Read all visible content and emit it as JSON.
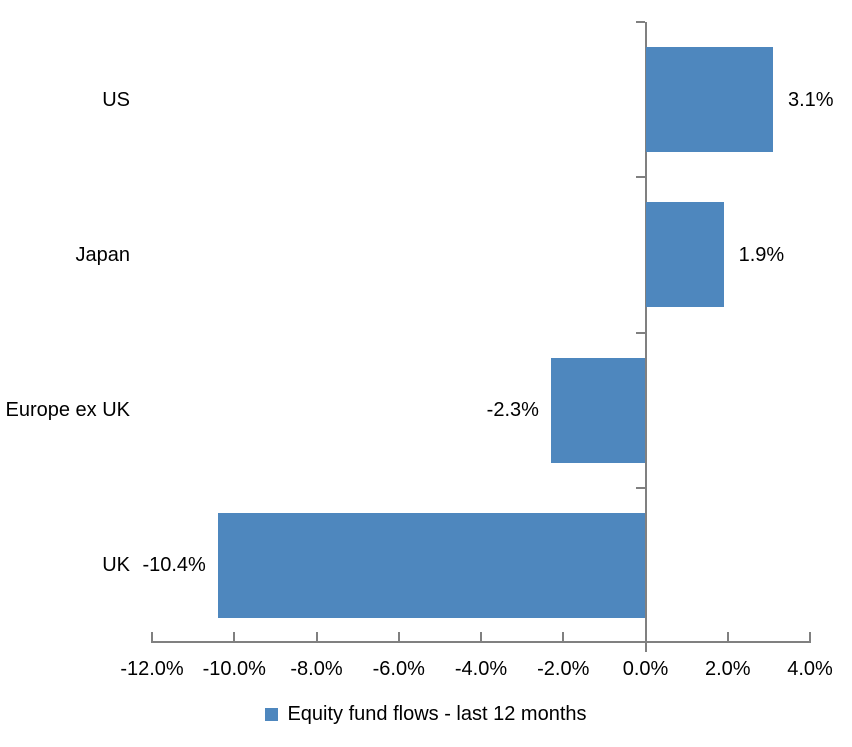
{
  "chart_data": {
    "type": "bar",
    "orientation": "horizontal",
    "title": "",
    "categories": [
      "US",
      "Japan",
      "Europe ex UK",
      "UK"
    ],
    "values": [
      3.1,
      1.9,
      -2.3,
      -10.4
    ],
    "data_labels": [
      "3.1%",
      "1.9%",
      "-2.3%",
      "-10.4%"
    ],
    "series": [
      {
        "name": "Equity fund flows - last 12 months",
        "values": [
          3.1,
          1.9,
          -2.3,
          -10.4
        ]
      }
    ],
    "xlabel": "",
    "ylabel": "",
    "xlim": [
      -12,
      4
    ],
    "x_ticks": [
      -12,
      -10,
      -8,
      -6,
      -4,
      -2,
      0,
      2,
      4
    ],
    "x_tick_labels": [
      "-12.0%",
      "-10.0%",
      "-8.0%",
      "-6.0%",
      "-4.0%",
      "-2.0%",
      "0.0%",
      "2.0%",
      "4.0%"
    ],
    "grid": false,
    "legend_position": "bottom",
    "bar_color": "#4E87BE",
    "axis_color": "#808080"
  },
  "legend": {
    "label": "Equity fund flows - last 12 months"
  }
}
